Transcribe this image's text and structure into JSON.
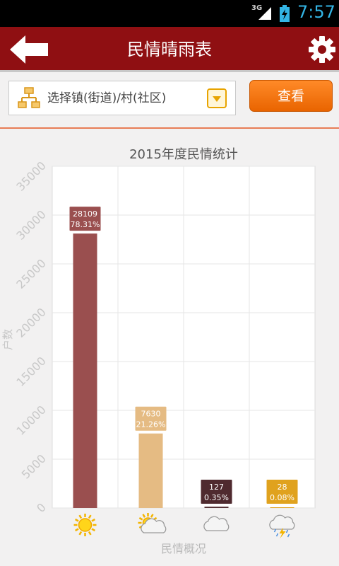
{
  "status": {
    "network": "3G",
    "time": "7:57"
  },
  "header": {
    "title": "民情晴雨表"
  },
  "selector": {
    "placeholder": "选择镇(街道)/村(社区)"
  },
  "actions": {
    "view_label": "查看"
  },
  "chart_data": {
    "type": "bar",
    "title": "2015年度民情统计",
    "xlabel": "民情概况",
    "ylabel": "户数",
    "ylim": [
      0,
      35000
    ],
    "yticks": [
      0,
      5000,
      10000,
      15000,
      20000,
      25000,
      30000,
      35000
    ],
    "categories": [
      "sun-icon",
      "partly-cloudy-icon",
      "cloudy-icon",
      "thunderstorm-icon"
    ],
    "values": [
      28109,
      7630,
      127,
      28
    ],
    "percentages": [
      "78.31%",
      "21.26%",
      "0.35%",
      "0.08%"
    ],
    "colors": [
      "#9a4f4f",
      "#e5bb83",
      "#4f2a2f",
      "#e0a21e"
    ],
    "grid": true
  }
}
